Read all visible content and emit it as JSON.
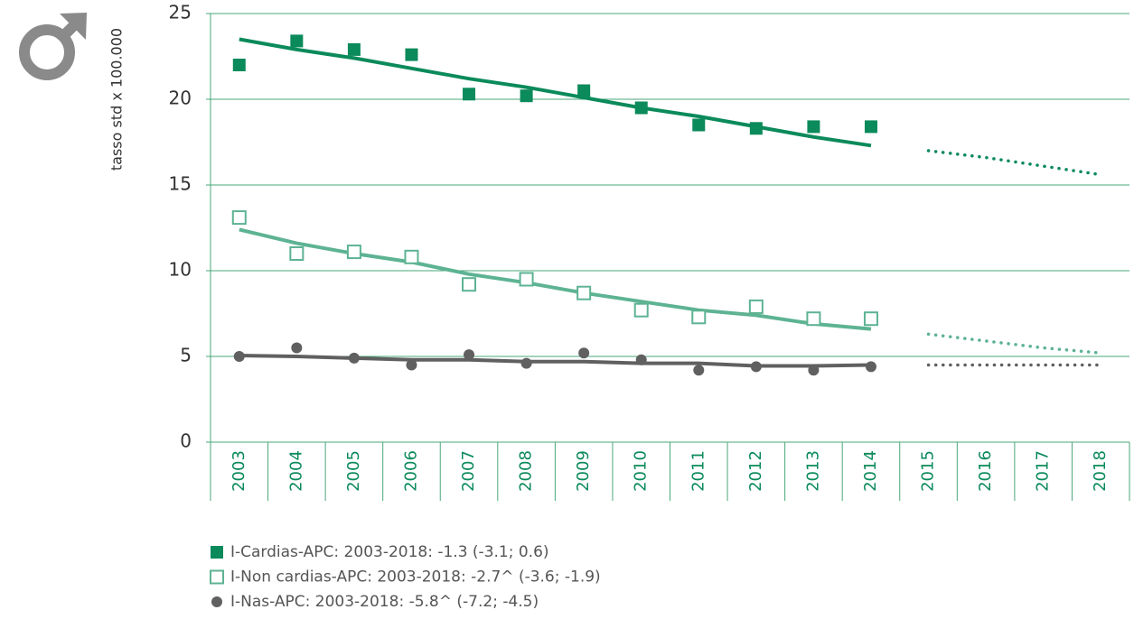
{
  "chart_data": {
    "type": "line",
    "ylabel": "tasso std x 100.000",
    "categories": [
      "2003",
      "2004",
      "2005",
      "2006",
      "2007",
      "2008",
      "2009",
      "2010",
      "2011",
      "2012",
      "2013",
      "2014",
      "2015",
      "2016",
      "2017",
      "2018"
    ],
    "ylim": [
      0,
      25
    ],
    "yticks": [
      0,
      5,
      10,
      15,
      20,
      25
    ],
    "grid": true,
    "series": [
      {
        "name": "I-Cardias-APC: 2003-2018: -1.3 (-3.1; 0.6)",
        "color": "#0b8a5b",
        "marker": "square-filled",
        "values": [
          22.0,
          23.4,
          22.9,
          22.6,
          20.3,
          20.2,
          20.5,
          19.5,
          18.5,
          18.3,
          18.4,
          18.4,
          null,
          null,
          null,
          null
        ],
        "trend": [
          23.5,
          22.9,
          22.4,
          21.8,
          21.2,
          20.7,
          20.1,
          19.5,
          19.0,
          18.4,
          17.8,
          17.3,
          null,
          null,
          null,
          null
        ],
        "projection": [
          null,
          null,
          null,
          null,
          null,
          null,
          null,
          null,
          null,
          null,
          null,
          null,
          17.0,
          16.6,
          16.1,
          15.6
        ]
      },
      {
        "name": "I-Non cardias-APC: 2003-2018: -2.7^ (-3.6; -1.9)",
        "color": "#5db393",
        "marker": "square-open",
        "values": [
          13.1,
          11.0,
          11.1,
          10.8,
          9.2,
          9.5,
          8.7,
          7.7,
          7.3,
          7.9,
          7.2,
          7.2,
          null,
          null,
          null,
          null
        ],
        "trend": [
          12.4,
          11.6,
          11.0,
          10.5,
          9.8,
          9.3,
          8.7,
          8.2,
          7.7,
          7.4,
          6.9,
          6.6,
          null,
          null,
          null,
          null
        ],
        "projection": [
          null,
          null,
          null,
          null,
          null,
          null,
          null,
          null,
          null,
          null,
          null,
          null,
          6.3,
          5.9,
          5.5,
          5.2
        ]
      },
      {
        "name": "I-Nas-APC: 2003-2018: -5.8^ (-7.2; -4.5)",
        "color": "#606060",
        "marker": "circle",
        "values": [
          5.0,
          5.5,
          4.9,
          4.5,
          5.1,
          4.6,
          5.2,
          4.8,
          4.2,
          4.4,
          4.2,
          4.4,
          null,
          null,
          null,
          null
        ],
        "trend": [
          5.05,
          5.0,
          4.9,
          4.8,
          4.8,
          4.7,
          4.7,
          4.6,
          4.6,
          4.45,
          4.45,
          4.5,
          null,
          null,
          null,
          null
        ],
        "projection": [
          null,
          null,
          null,
          null,
          null,
          null,
          null,
          null,
          null,
          null,
          null,
          null,
          4.5,
          4.5,
          4.5,
          4.5
        ]
      }
    ]
  }
}
